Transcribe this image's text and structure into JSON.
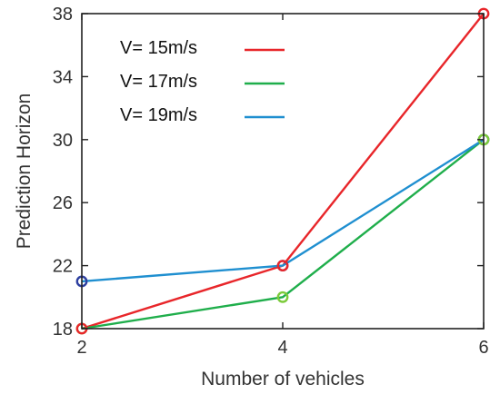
{
  "chart_data": {
    "type": "line",
    "title": "",
    "xlabel": "Number of vehicles",
    "ylabel": "Prediction Horizon",
    "xlim": [
      2,
      6
    ],
    "ylim": [
      18,
      38
    ],
    "xticks": [
      2,
      4,
      6
    ],
    "yticks": [
      18,
      22,
      26,
      30,
      34,
      38
    ],
    "x": [
      2,
      4,
      6
    ],
    "grid": false,
    "legend_position": "top-left",
    "series": [
      {
        "name": "V= 15m/s",
        "color": "#e8262a",
        "marker_color": "#e8262a",
        "values": [
          18,
          22,
          38
        ]
      },
      {
        "name": "V= 17m/s",
        "color": "#1fae4b",
        "marker_color": "#7ccb3b",
        "values": [
          18,
          20,
          30
        ]
      },
      {
        "name": "V= 19m/s",
        "color": "#1f8fd0",
        "marker_color": "#2d3fa0",
        "values": [
          21,
          22,
          30
        ]
      }
    ]
  }
}
